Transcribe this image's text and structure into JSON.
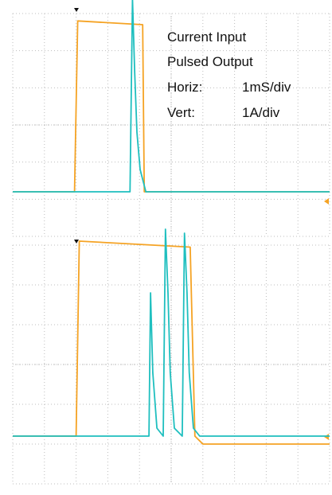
{
  "legend": {
    "line1": "Current Input",
    "line2": "Pulsed Output",
    "horiz_label": "Horiz:",
    "horiz_value": "1mS/div",
    "vert_label": "Vert:",
    "vert_value": "1A/div"
  },
  "colors": {
    "input_trace": "#f5a324",
    "output_trace": "#1fbfbf",
    "grid": "#bdbdbd",
    "marker": "#111111",
    "ground_marker": "#f5a324",
    "background": "#ffffff"
  },
  "chart_data": [
    {
      "type": "line",
      "title": "",
      "xlabel": "",
      "ylabel": "",
      "grid": true,
      "xlim": [
        0,
        10
      ],
      "ylim": [
        -1.2,
        4.8
      ],
      "series": [
        {
          "color": "#f5a324",
          "x": [
            0,
            1.95,
            2.05,
            4.1,
            4.15,
            10
          ],
          "y": [
            0,
            0,
            4.6,
            4.5,
            0,
            0
          ]
        },
        {
          "color": "#1fbfbf",
          "x": [
            0,
            3.7,
            3.78,
            3.85,
            3.92,
            4.02,
            4.2,
            10
          ],
          "y": [
            0,
            0,
            5.2,
            3.2,
            1.6,
            0.6,
            0,
            0
          ]
        }
      ]
    },
    {
      "type": "line",
      "title": "",
      "xlabel": "",
      "ylabel": "",
      "grid": true,
      "xlim": [
        0,
        10
      ],
      "ylim": [
        -1.2,
        4.8
      ],
      "series": [
        {
          "color": "#f5a324",
          "x": [
            0,
            2.0,
            2.1,
            5.6,
            5.75,
            6.0,
            10
          ],
          "y": [
            0,
            0,
            4.9,
            4.75,
            0,
            -0.2,
            -0.2
          ]
        },
        {
          "color": "#1fbfbf",
          "x": [
            0,
            4.3,
            4.35,
            4.42,
            4.55,
            4.75,
            4.82,
            4.9,
            4.97,
            5.1,
            5.35,
            5.42,
            5.5,
            5.57,
            5.7,
            5.9,
            10
          ],
          "y": [
            0,
            0,
            3.6,
            1.6,
            0.2,
            0,
            5.2,
            3.6,
            1.6,
            0.2,
            0,
            5.1,
            3.6,
            1.6,
            0.2,
            0,
            0
          ]
        }
      ]
    }
  ]
}
